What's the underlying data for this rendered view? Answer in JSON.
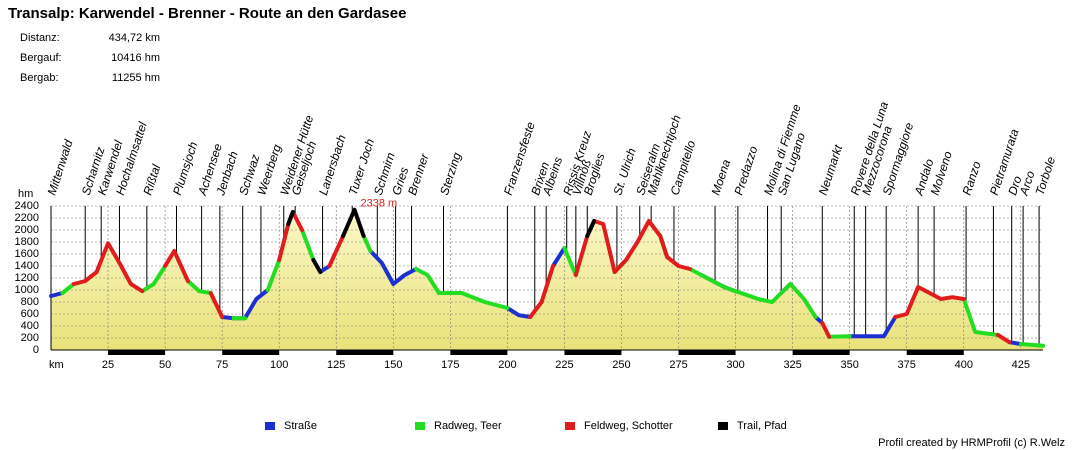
{
  "chart_data": {
    "type": "line",
    "title": "Transalp: Karwendel - Brenner - Route an den Gardasee",
    "stats": [
      {
        "label": "Distanz:",
        "value": "434,72 km"
      },
      {
        "label": "Bergauf:",
        "value": "10416 hm"
      },
      {
        "label": "Bergab:",
        "value": "11255 hm"
      }
    ],
    "xlabel": "km",
    "ylabel": "hm",
    "xlim": [
      0,
      434.72
    ],
    "ylim": [
      0,
      2400
    ],
    "xticks": [
      25,
      50,
      75,
      100,
      125,
      150,
      175,
      200,
      225,
      250,
      275,
      300,
      325,
      350,
      375,
      400,
      425
    ],
    "yticks": [
      0,
      200,
      400,
      600,
      800,
      1000,
      1200,
      1400,
      1600,
      1800,
      2000,
      2200,
      2400
    ],
    "grid": true,
    "x": [
      0,
      5,
      10,
      15,
      20,
      25,
      30,
      35,
      40,
      45,
      50,
      54,
      60,
      65,
      70,
      75,
      80,
      85,
      90,
      95,
      100,
      104,
      106,
      110,
      115,
      118,
      122,
      128,
      133,
      137,
      140,
      145,
      150,
      155,
      160,
      165,
      170,
      180,
      190,
      200,
      205,
      210,
      215,
      220,
      225,
      230,
      235,
      238,
      242,
      247,
      252,
      257,
      262,
      267,
      270,
      275,
      280,
      285,
      290,
      295,
      300,
      310,
      316,
      320,
      324,
      330,
      335,
      338,
      341,
      350,
      365,
      370,
      375,
      380,
      385,
      390,
      395,
      400,
      405,
      415,
      420,
      425,
      434.72
    ],
    "series": [
      {
        "name": "Straße",
        "color": "#1c2fd0",
        "values": [
          900,
          950,
          null,
          null,
          null,
          null,
          null,
          null,
          null,
          null,
          null,
          null,
          null,
          null,
          null,
          550,
          530,
          530,
          850,
          1000,
          null,
          null,
          null,
          null,
          null,
          1300,
          1400,
          null,
          null,
          null,
          1650,
          1450,
          1100,
          1250,
          1350,
          null,
          null,
          null,
          null,
          700,
          580,
          550,
          null,
          1400,
          1700,
          null,
          null,
          null,
          null,
          null,
          null,
          null,
          null,
          null,
          null,
          null,
          null,
          1250,
          1150,
          1050,
          980,
          null,
          null,
          950,
          1100,
          null,
          550,
          450,
          null,
          230,
          230,
          550,
          null,
          null,
          null,
          null,
          null,
          null,
          null,
          null,
          130,
          100,
          null
        ]
      },
      {
        "name": "Radweg, Teer",
        "color": "#22dd22",
        "values": [
          null,
          950,
          1100,
          null,
          null,
          null,
          null,
          null,
          980,
          1100,
          1400,
          null,
          1150,
          980,
          950,
          null,
          530,
          530,
          null,
          1000,
          1500,
          null,
          null,
          2000,
          1500,
          null,
          null,
          null,
          null,
          1900,
          1650,
          null,
          null,
          null,
          1350,
          1250,
          950,
          950,
          800,
          700,
          null,
          null,
          null,
          null,
          1700,
          1250,
          null,
          null,
          null,
          1300,
          1500,
          null,
          null,
          1900,
          1550,
          null,
          1350,
          1250,
          1150,
          1050,
          980,
          850,
          800,
          950,
          1100,
          850,
          550,
          null,
          220,
          230,
          null,
          null,
          null,
          null,
          null,
          null,
          null,
          850,
          300,
          250,
          null,
          100,
          70
        ]
      },
      {
        "name": "Feldweg, Schotter",
        "color": "#e01c1c",
        "values": [
          null,
          null,
          1100,
          1150,
          1300,
          1780,
          1450,
          1100,
          980,
          null,
          1400,
          1650,
          1150,
          null,
          950,
          550,
          null,
          null,
          null,
          null,
          1500,
          2100,
          2300,
          2000,
          null,
          null,
          1400,
          1900,
          null,
          null,
          null,
          null,
          null,
          null,
          null,
          null,
          null,
          null,
          null,
          null,
          null,
          550,
          800,
          1400,
          null,
          1250,
          1900,
          2150,
          2100,
          1300,
          1500,
          1800,
          2150,
          1900,
          1550,
          1400,
          1350,
          null,
          null,
          null,
          null,
          null,
          null,
          null,
          null,
          null,
          null,
          450,
          220,
          null,
          null,
          550,
          600,
          1050,
          950,
          850,
          880,
          850,
          null,
          250,
          130,
          null,
          null
        ]
      },
      {
        "name": "Trail, Pfad",
        "color": "#000000",
        "values": [
          null,
          null,
          null,
          null,
          null,
          null,
          null,
          null,
          null,
          null,
          null,
          null,
          null,
          null,
          null,
          null,
          null,
          null,
          null,
          null,
          null,
          2100,
          2300,
          null,
          1500,
          1300,
          null,
          1900,
          2338,
          1900,
          null,
          null,
          null,
          null,
          null,
          null,
          null,
          null,
          null,
          null,
          null,
          null,
          null,
          null,
          null,
          null,
          1900,
          2150,
          null,
          null,
          null,
          null,
          null,
          null,
          null,
          null,
          null,
          null,
          null,
          null,
          null,
          null,
          null,
          null,
          null,
          null,
          null,
          null,
          null,
          null,
          null,
          null,
          null,
          null,
          null,
          null,
          null,
          null,
          null,
          null,
          null,
          null,
          null
        ]
      }
    ],
    "annotation": {
      "x": 133,
      "value": 2338,
      "label": "2338 m"
    },
    "waypoints": [
      {
        "name": "Mittenwald",
        "km": 0
      },
      {
        "name": "Scharnitz",
        "km": 15
      },
      {
        "name": "Karwendel",
        "km": 22
      },
      {
        "name": "Hochalmsattel",
        "km": 30
      },
      {
        "name": "Rißtal",
        "km": 42
      },
      {
        "name": "Plumsjoch",
        "km": 55
      },
      {
        "name": "Achensee",
        "km": 66
      },
      {
        "name": "Jenbach",
        "km": 74
      },
      {
        "name": "Schwaz",
        "km": 84
      },
      {
        "name": "Weerberg",
        "km": 92
      },
      {
        "name": "Weidener Hütte",
        "km": 102
      },
      {
        "name": "Geiseljoch",
        "km": 107
      },
      {
        "name": "Lanersbach",
        "km": 119
      },
      {
        "name": "Tuxer Joch",
        "km": 132
      },
      {
        "name": "Schmirn",
        "km": 143
      },
      {
        "name": "Gries",
        "km": 151
      },
      {
        "name": "Brenner",
        "km": 158
      },
      {
        "name": "Sterzing",
        "km": 172
      },
      {
        "name": "Franzensfeste",
        "km": 200
      },
      {
        "name": "Brixen",
        "km": 212
      },
      {
        "name": "Albeins",
        "km": 217
      },
      {
        "name": "Rissis Kreuz",
        "km": 226
      },
      {
        "name": "Villnöß",
        "km": 230
      },
      {
        "name": "Broglies",
        "km": 235
      },
      {
        "name": "St. Ulrich",
        "km": 248
      },
      {
        "name": "Seiseralm",
        "km": 258
      },
      {
        "name": "Mahlknechtjoch",
        "km": 263
      },
      {
        "name": "Campitello",
        "km": 273
      },
      {
        "name": "Moena",
        "km": 291
      },
      {
        "name": "Predazzo",
        "km": 301
      },
      {
        "name": "Molina di Fiemme",
        "km": 314
      },
      {
        "name": "San Lugano",
        "km": 320
      },
      {
        "name": "Neumarkt",
        "km": 338
      },
      {
        "name": "Rovere della Luna",
        "km": 352
      },
      {
        "name": "Mezzocorona",
        "km": 357
      },
      {
        "name": "Spormaggiore",
        "km": 366
      },
      {
        "name": "Andalo",
        "km": 380
      },
      {
        "name": "Molveno",
        "km": 387
      },
      {
        "name": "Ranzo",
        "km": 401
      },
      {
        "name": "Pietramurata",
        "km": 413
      },
      {
        "name": "Dro",
        "km": 421
      },
      {
        "name": "Arco",
        "km": 426
      },
      {
        "name": "Torbole",
        "km": 433
      }
    ],
    "credit": "Profil created by HRMProfil (c) R.Welz"
  }
}
